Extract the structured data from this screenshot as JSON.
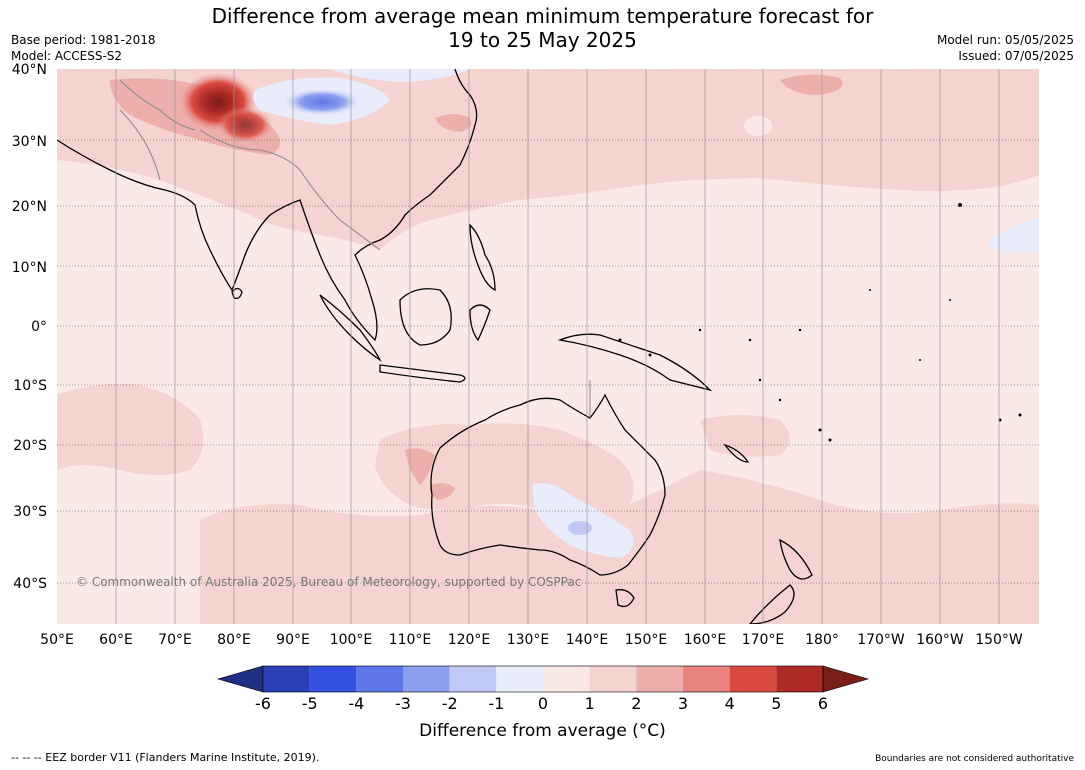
{
  "title_line1": "Difference from average mean minimum temperature forecast for",
  "title_line2": "19 to 25 May 2025",
  "meta_left": {
    "base_period": "Base period: 1981-2018",
    "model": "Model: ACCESS-S2"
  },
  "meta_right": {
    "model_run": "Model run: 05/05/2025",
    "issued": "Issued: 07/05/2025"
  },
  "copyright": "© Commonwealth of Australia 2025, Bureau of Meteorology, supported by COSPPac",
  "lat_labels": [
    "40°N",
    "30°N",
    "20°N",
    "10°N",
    "0°",
    "10°S",
    "20°S",
    "30°S",
    "40°S"
  ],
  "lon_labels": [
    "50°E",
    "60°E",
    "70°E",
    "80°E",
    "90°E",
    "100°E",
    "110°E",
    "120°E",
    "130°E",
    "140°E",
    "150°E",
    "160°E",
    "170°E",
    "180°",
    "170°W",
    "160°W",
    "150°W"
  ],
  "colorbar": {
    "label": "Difference from average (°C)",
    "ticks": [
      "-6",
      "-5",
      "-4",
      "-3",
      "-2",
      "-1",
      "0",
      "1",
      "2",
      "3",
      "4",
      "5",
      "6"
    ],
    "colors": [
      "#1f2f84",
      "#2a3fb5",
      "#3251e0",
      "#5d77e8",
      "#8c9fee",
      "#c0c9f4",
      "#e8ecfb",
      "#fbe9e8",
      "#f4d3d1",
      "#edafac",
      "#e8837e",
      "#db4a3f",
      "#ae2a26",
      "#7a1c18"
    ]
  },
  "footer_left": "--  --  -- EEZ border V11 (Flanders Marine Institute, 2019).",
  "footer_right": "Boundaries are not considered authoritative"
}
